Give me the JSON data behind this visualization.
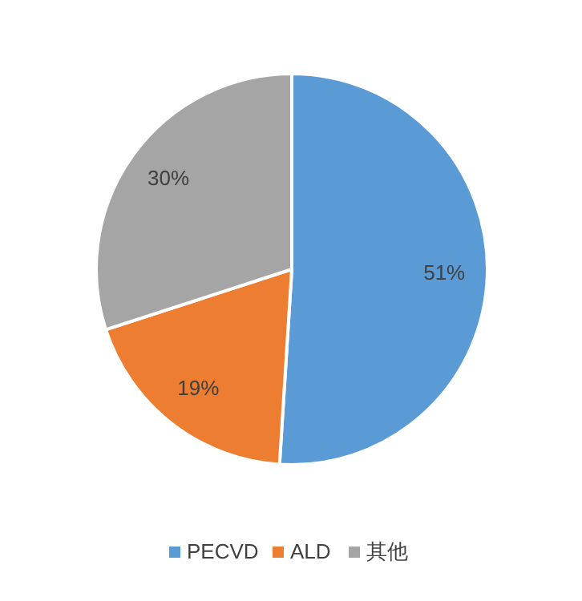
{
  "chart_data": {
    "type": "pie",
    "categories": [
      "PECVD",
      "ALD",
      "其他"
    ],
    "values": [
      51,
      19,
      30
    ],
    "value_labels": [
      "51%",
      "19%",
      "30%"
    ],
    "colors": [
      "#5b9bd5",
      "#ed7d31",
      "#a5a5a5"
    ],
    "legend": "bottom"
  }
}
